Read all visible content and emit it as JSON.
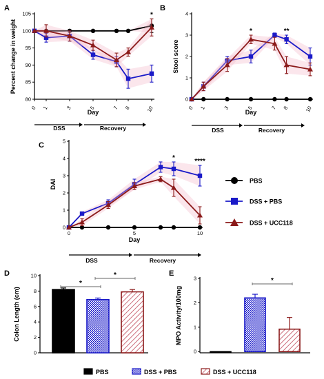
{
  "colors": {
    "pbs": "#000000",
    "dss_pbs": "#1a1ac8",
    "dss_ucc": "#8b1a1a",
    "shade": "#f3b8c8"
  },
  "chart_data": [
    {
      "panel": "A",
      "type": "line",
      "x": [
        0,
        1,
        3,
        5,
        7,
        8,
        10
      ],
      "xticks": [
        "0",
        "1",
        "3",
        "5",
        "7",
        "8",
        "10"
      ],
      "ylim": [
        80,
        105
      ],
      "yticks": [
        "80",
        "85",
        "90",
        "95",
        "100",
        "105"
      ],
      "xlabel": "Day",
      "ylabel": "Percent change in weight",
      "phases": [
        "DSS",
        "Recovery"
      ],
      "significance": [
        {
          "x": 10,
          "label": "*"
        }
      ],
      "series": [
        {
          "key": "pbs",
          "values": [
            100,
            100,
            100,
            100,
            100,
            100,
            101.5
          ],
          "errors": [
            0,
            0,
            0,
            0,
            0,
            0,
            2
          ]
        },
        {
          "key": "dss_pbs",
          "values": [
            100,
            98,
            98.5,
            93,
            91,
            86,
            87.5
          ],
          "errors": [
            0,
            1.3,
            1.5,
            1.3,
            1.5,
            2.8,
            2.5
          ]
        },
        {
          "key": "dss_ucc",
          "values": [
            100,
            100,
            98.5,
            95.8,
            91.5,
            93.8,
            101
          ],
          "errors": [
            0,
            1.8,
            1.5,
            1.5,
            2,
            1.2,
            2.5
          ]
        }
      ]
    },
    {
      "panel": "B",
      "type": "line",
      "x": [
        0,
        1,
        3,
        5,
        7,
        8,
        10
      ],
      "xticks": [
        "0",
        "1",
        "3",
        "5",
        "7",
        "8",
        "10"
      ],
      "ylim": [
        0,
        4
      ],
      "yticks": [
        "0",
        "1",
        "2",
        "3",
        "4"
      ],
      "xlabel": "Day",
      "ylabel": "Stool score",
      "phases": [
        "DSS",
        "Recovery"
      ],
      "significance": [
        {
          "x": 5,
          "label": "*"
        },
        {
          "x": 8,
          "label": "**"
        }
      ],
      "series": [
        {
          "key": "pbs",
          "values": [
            0,
            0,
            0,
            0,
            0,
            0,
            0
          ],
          "errors": [
            0,
            0,
            0,
            0,
            0,
            0,
            0
          ]
        },
        {
          "key": "dss_pbs",
          "values": [
            0,
            0.6,
            1.8,
            2,
            3,
            2.8,
            2
          ],
          "errors": [
            0,
            0.2,
            0.2,
            0.3,
            0.1,
            0.2,
            0.4
          ]
        },
        {
          "key": "dss_ucc",
          "values": [
            0,
            0.6,
            1.6,
            2.8,
            2.6,
            1.6,
            1.4
          ],
          "errors": [
            0,
            0.2,
            0.3,
            0.2,
            0.3,
            0.4,
            0.3
          ]
        }
      ]
    },
    {
      "panel": "C",
      "type": "line",
      "x": [
        0,
        1,
        3,
        5,
        7,
        8,
        10
      ],
      "xticks": [
        "0",
        "5",
        "10"
      ],
      "xtick_values": [
        0,
        5,
        10
      ],
      "ylim": [
        0,
        5
      ],
      "yticks": [
        "0",
        "1",
        "2",
        "3",
        "4",
        "5"
      ],
      "xlabel": "Day",
      "ylabel": "DAI",
      "phases": [
        "DSS",
        "Recovery"
      ],
      "significance": [
        {
          "x": 8,
          "label": "*"
        },
        {
          "x": 10,
          "label": "****"
        }
      ],
      "series": [
        {
          "key": "pbs",
          "values": [
            0,
            0,
            0,
            0,
            0,
            0,
            0
          ],
          "errors": [
            0,
            0,
            0,
            0,
            0,
            0,
            0
          ]
        },
        {
          "key": "dss_pbs",
          "values": [
            0,
            0.8,
            1.4,
            2.5,
            3.5,
            3.4,
            3
          ],
          "errors": [
            0,
            0.1,
            0.2,
            0.3,
            0.3,
            0.4,
            0.6
          ]
        },
        {
          "key": "dss_ucc",
          "values": [
            0,
            0.3,
            1.3,
            2.4,
            2.8,
            2.3,
            0.7
          ],
          "errors": [
            0,
            0.2,
            0.2,
            0.2,
            0.15,
            0.5,
            0.5
          ]
        }
      ]
    },
    {
      "panel": "D",
      "type": "bar",
      "categories": [
        "PBS",
        "DSS + PBS",
        "DSS + UCC118"
      ],
      "values": [
        8.2,
        6.9,
        7.9
      ],
      "errors": [
        0.2,
        0.2,
        0.3
      ],
      "ylim": [
        0,
        10
      ],
      "yticks": [
        "0",
        "2",
        "4",
        "6",
        "8",
        "10"
      ],
      "ylabel": "Colon Length (cm)",
      "significance": [
        {
          "from": 0,
          "to": 1,
          "label": "*"
        },
        {
          "from": 1,
          "to": 2,
          "label": "*"
        }
      ]
    },
    {
      "panel": "E",
      "type": "bar",
      "categories": [
        "PBS",
        "DSS + PBS",
        "DSS + UCC118"
      ],
      "values": [
        -0.02,
        2.2,
        0.92
      ],
      "errors": [
        0.01,
        0.15,
        0.48
      ],
      "ylim": [
        -0.05,
        3
      ],
      "yticks": [
        "0",
        "1",
        "2",
        "3"
      ],
      "ylabel": "MPO Activity/100mg",
      "significance": [
        {
          "from": 1,
          "to": 2,
          "label": "*"
        }
      ]
    }
  ],
  "legend": [
    {
      "key": "pbs",
      "label": "PBS"
    },
    {
      "key": "dss_pbs",
      "label": "DSS + PBS"
    },
    {
      "key": "dss_ucc",
      "label": "DSS + UCC118"
    }
  ]
}
